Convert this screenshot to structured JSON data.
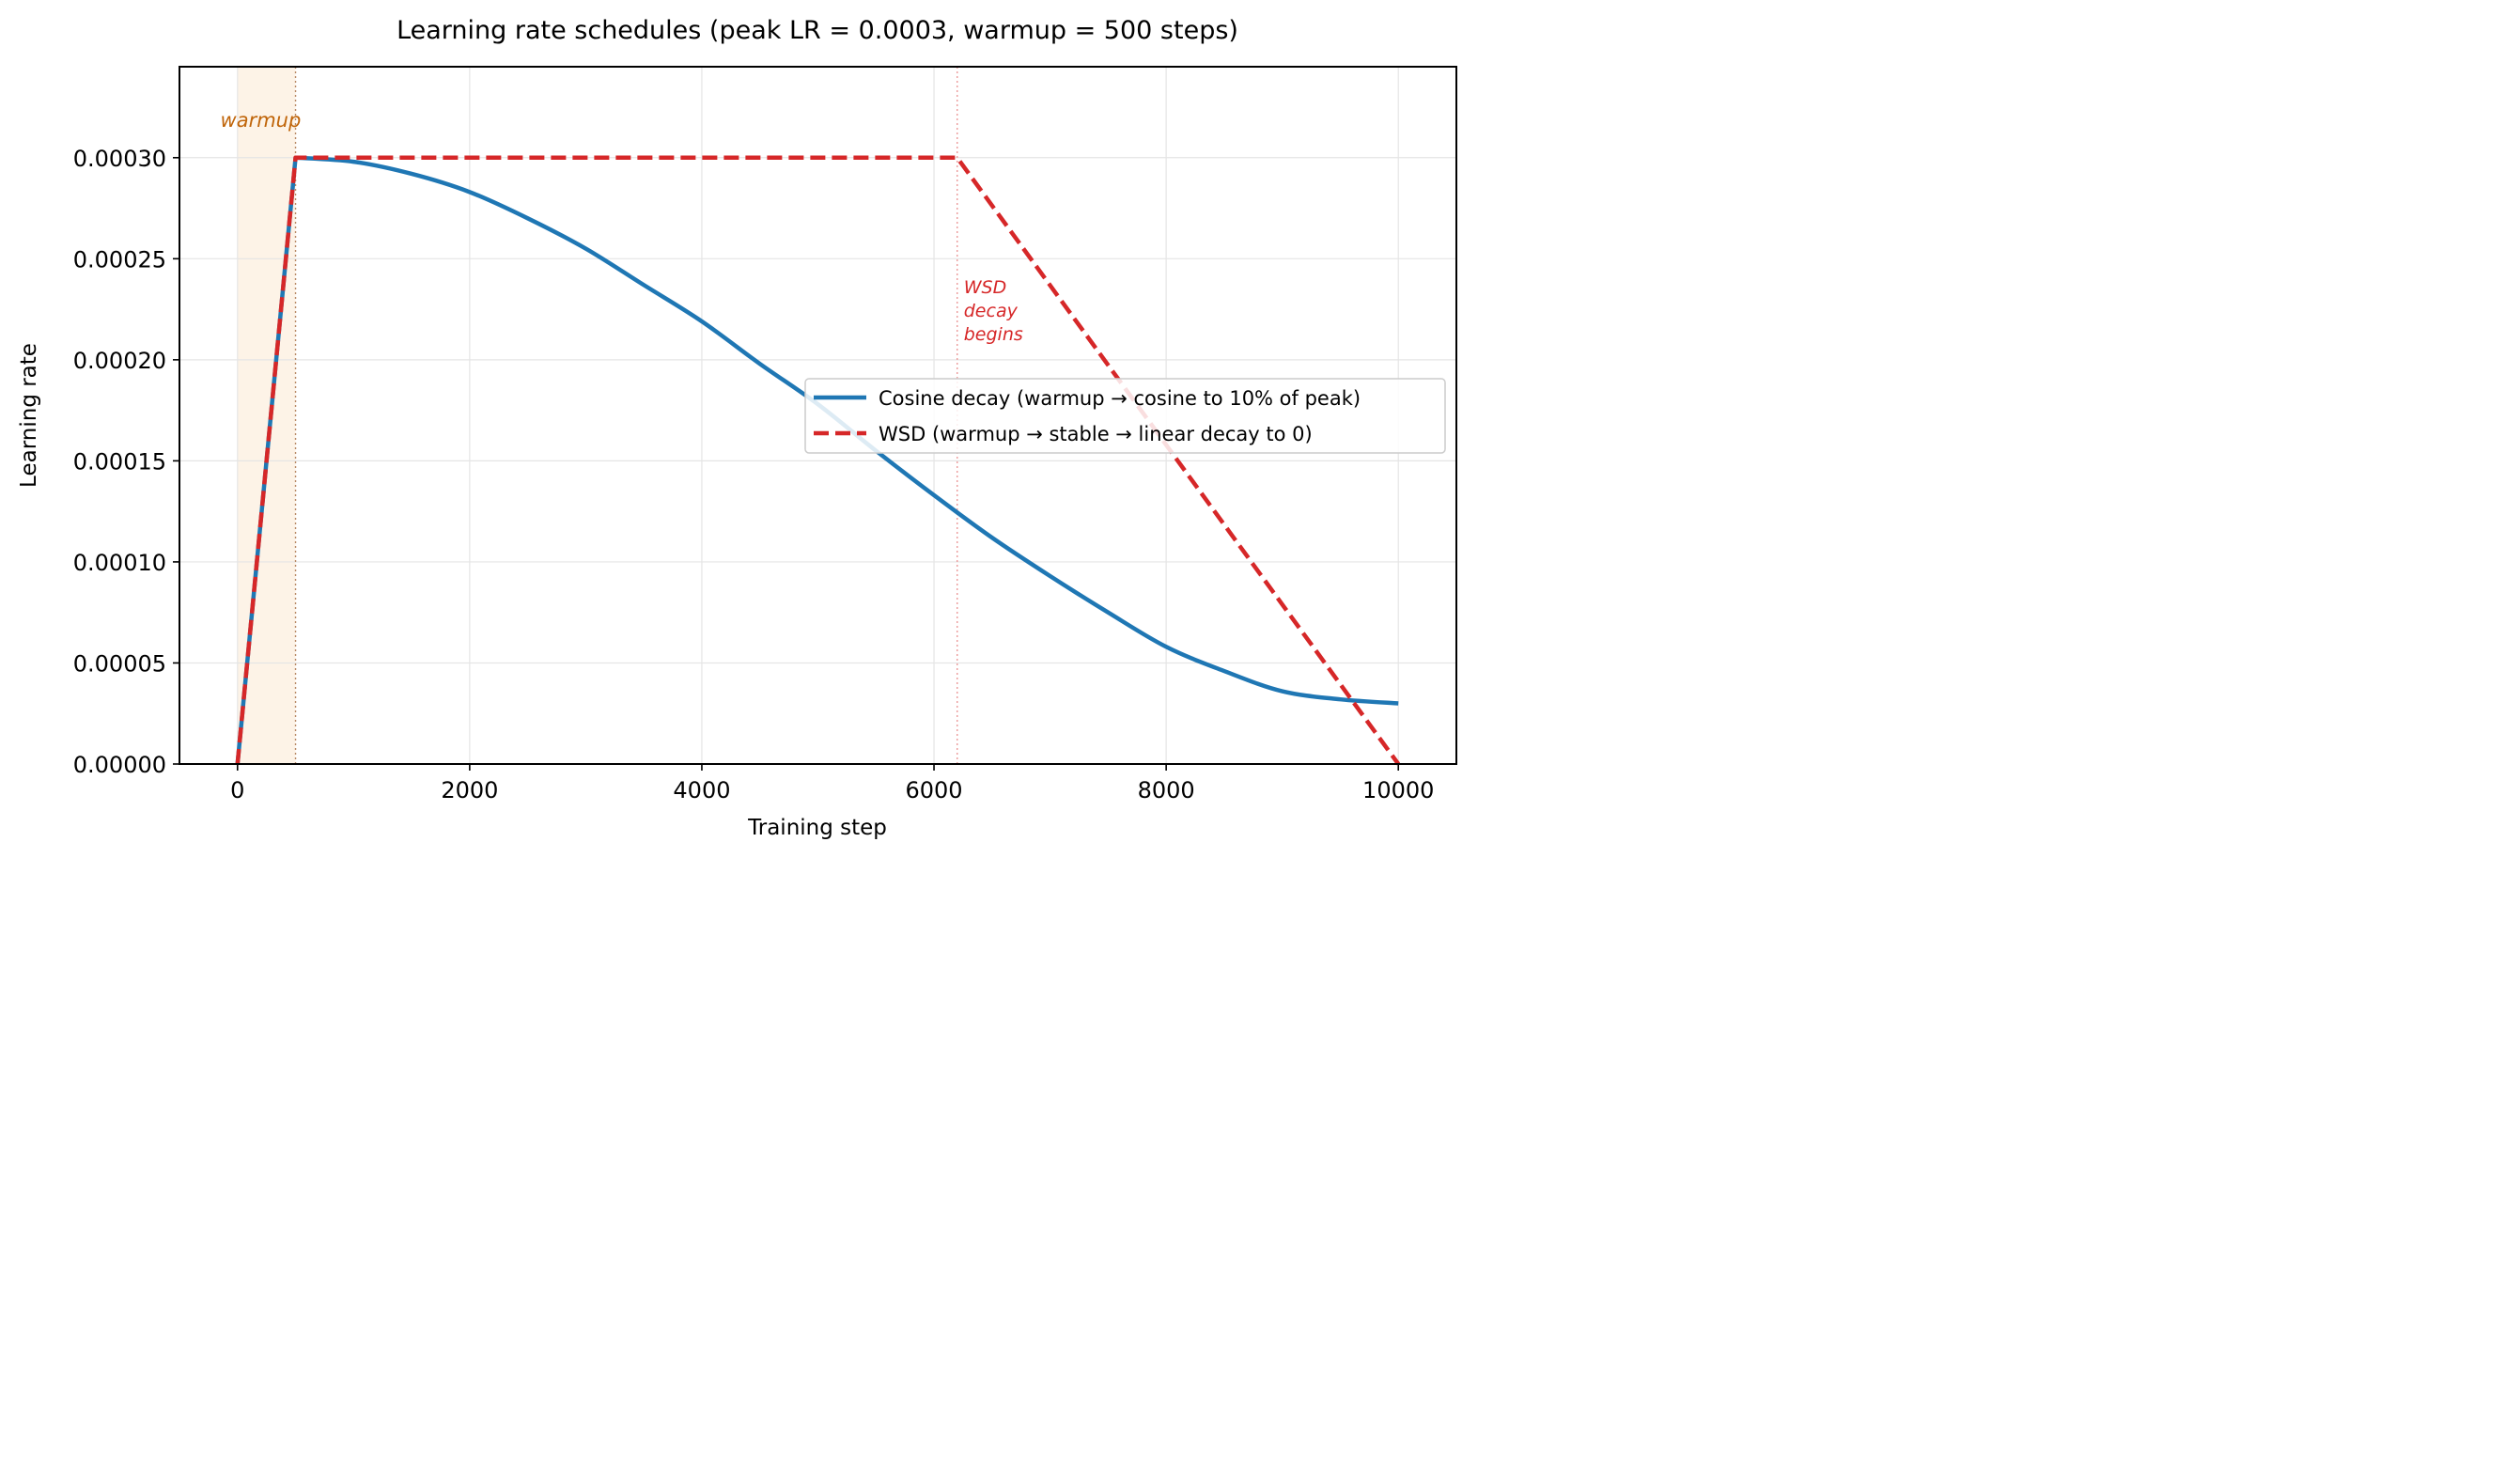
{
  "chart_data": {
    "type": "line",
    "title": "Learning rate schedules (peak LR = 0.0003, warmup = 500 steps)",
    "xlabel": "Training step",
    "ylabel": "Learning rate",
    "xlim": [
      -500,
      10500
    ],
    "ylim": [
      0,
      0.000345
    ],
    "xticks": [
      0,
      2000,
      4000,
      6000,
      8000,
      10000
    ],
    "xtick_labels": [
      "0",
      "2000",
      "4000",
      "6000",
      "8000",
      "10000"
    ],
    "yticks": [
      0,
      5e-05,
      0.0001,
      0.00015,
      0.0002,
      0.00025,
      0.0003
    ],
    "ytick_labels": [
      "0.00000",
      "0.00005",
      "0.00010",
      "0.00015",
      "0.00020",
      "0.00025",
      "0.00030"
    ],
    "grid": true,
    "legend_position": "center-right",
    "warmup_region": [
      0,
      500
    ],
    "warmup_label": "warmup",
    "wsd_decay_start": 6200,
    "wsd_decay_label_lines": [
      "WSD",
      "decay",
      "begins"
    ],
    "colors": {
      "cosine": "#1f77b4",
      "wsd": "#d62728",
      "warmup_fill": "#fdf3e7",
      "warmup_text": "#c0650a",
      "annotation": "#d62728",
      "grid": "#e5e5e5"
    },
    "series": [
      {
        "name": "Cosine decay (warmup → cosine to 10% of peak)",
        "style": "solid",
        "color": "#1f77b4",
        "x": [
          0,
          500,
          1000,
          1500,
          2000,
          2500,
          3000,
          3500,
          4000,
          4500,
          5000,
          5500,
          6000,
          6500,
          7000,
          7500,
          8000,
          8500,
          9000,
          9500,
          10000
        ],
        "y": [
          0,
          0.0003,
          0.000298,
          0.000292,
          0.000283,
          0.00027,
          0.000255,
          0.000237,
          0.000219,
          0.000198,
          0.000178,
          0.000155,
          0.000133,
          0.000112,
          9.3e-05,
          7.5e-05,
          5.8e-05,
          4.6e-05,
          3.6e-05,
          3.2e-05,
          3e-05
        ]
      },
      {
        "name": "WSD (warmup → stable → linear decay to 0)",
        "style": "dashed",
        "color": "#d62728",
        "x": [
          0,
          500,
          6200,
          10000
        ],
        "y": [
          0,
          0.0003,
          0.0003,
          0
        ]
      }
    ]
  }
}
